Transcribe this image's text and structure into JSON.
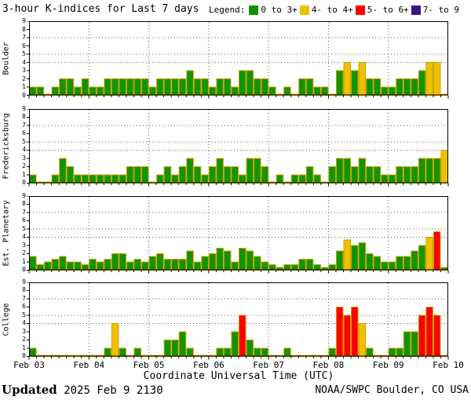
{
  "title": "3-hour K-indices for Last 7 days",
  "legend": {
    "label": "Legend:",
    "items": [
      {
        "label": "0 to 3+",
        "color": "#129400"
      },
      {
        "label": "4- to 4+",
        "color": "#f0c000"
      },
      {
        "label": "5- to 6+",
        "color": "#fb0000"
      },
      {
        "label": "7- to 9",
        "color": "#3d1486"
      }
    ]
  },
  "x_axis": {
    "labels": [
      "Feb 03",
      "Feb 04",
      "Feb 05",
      "Feb 06",
      "Feb 07",
      "Feb 08",
      "Feb 09",
      "Feb 10"
    ],
    "title": "Coordinate Universal Time (UTC)"
  },
  "y_axis": {
    "min": 0,
    "max": 9,
    "dotted_levels": [
      4,
      5,
      7
    ]
  },
  "footer": {
    "updated_label": "Updated",
    "updated_value": "2025 Feb  9 2130",
    "credit": "NOAA/SWPC Boulder, CO USA"
  },
  "chart_data": {
    "type": "bar",
    "title": "3-hour K-indices for Last 7 days",
    "bars_per_day": 8,
    "ylim": [
      0,
      9
    ],
    "grid": {
      "horizontal_dotted_at": [
        4,
        5,
        7
      ],
      "vertical_dotted_at_day_boundaries": true
    },
    "x_days": [
      "Feb 03",
      "Feb 04",
      "Feb 05",
      "Feb 06",
      "Feb 07",
      "Feb 08",
      "Feb 09"
    ],
    "series": [
      {
        "name": "Boulder",
        "values_by_day": [
          [
            1,
            1,
            0,
            1,
            2,
            2,
            1,
            2
          ],
          [
            1,
            1,
            2,
            2,
            2,
            2,
            2,
            2
          ],
          [
            1,
            2,
            2,
            2,
            2,
            3,
            2,
            2
          ],
          [
            1,
            2,
            2,
            1,
            3,
            3,
            2,
            2
          ],
          [
            1,
            0,
            1,
            0,
            2,
            2,
            1,
            1
          ],
          [
            0,
            3,
            4,
            3,
            4,
            2,
            2,
            1
          ],
          [
            1,
            2,
            2,
            2,
            3,
            4,
            4,
            0
          ]
        ]
      },
      {
        "name": "Fredericksburg",
        "values_by_day": [
          [
            1,
            0,
            0,
            1,
            3,
            2,
            1,
            1
          ],
          [
            1,
            1,
            1,
            1,
            1,
            2,
            2,
            2
          ],
          [
            0,
            1,
            2,
            1,
            2,
            3,
            2,
            1
          ],
          [
            2,
            3,
            2,
            2,
            1,
            3,
            3,
            2
          ],
          [
            0,
            1,
            0,
            1,
            1,
            2,
            1,
            0
          ],
          [
            2,
            3,
            3,
            2,
            3,
            2,
            2,
            1
          ],
          [
            1,
            2,
            2,
            2,
            3,
            3,
            3,
            4
          ]
        ]
      },
      {
        "name": "Est. Planetary",
        "values_by_day": [
          [
            1.67,
            0.67,
            1,
            1.33,
            1.67,
            1,
            1,
            0.67
          ],
          [
            1.33,
            1,
            1.33,
            2,
            2,
            1,
            1.33,
            1
          ],
          [
            1.67,
            2,
            1.33,
            1.33,
            1.33,
            2.33,
            1,
            1.67
          ],
          [
            2,
            2.67,
            2.33,
            1,
            2.67,
            2.33,
            1.67,
            1
          ],
          [
            0.67,
            0.33,
            0.67,
            0.67,
            1.33,
            1.33,
            0.67,
            0.33
          ],
          [
            0.67,
            2.33,
            3.67,
            3,
            3.33,
            2,
            1.67,
            1
          ],
          [
            1,
            1.67,
            1.67,
            2.33,
            3,
            4,
            4.67,
            0.33
          ]
        ]
      },
      {
        "name": "College",
        "values_by_day": [
          [
            1,
            0,
            0,
            0,
            0,
            0,
            0,
            0
          ],
          [
            0,
            0,
            1,
            4,
            1,
            0,
            1,
            0
          ],
          [
            0,
            0,
            2,
            2,
            3,
            1,
            0,
            0
          ],
          [
            0,
            1,
            1,
            3,
            5,
            2,
            1,
            1
          ],
          [
            0,
            0,
            1,
            0,
            0,
            0,
            0,
            0
          ],
          [
            1,
            6,
            5,
            6,
            4,
            1,
            0,
            0
          ],
          [
            1,
            1,
            3,
            3,
            5,
            6,
            5,
            0
          ]
        ]
      }
    ],
    "color_thresholds": [
      {
        "max": 3.4,
        "color": "#129400",
        "label": "0 to 3+"
      },
      {
        "max": 4.4,
        "color": "#f0c000",
        "label": "4- to 4+"
      },
      {
        "max": 6.4,
        "color": "#fb0000",
        "label": "5- to 6+"
      },
      {
        "max": 9.0,
        "color": "#3d1486",
        "label": "7- to 9"
      }
    ],
    "bar_outline_color": "#c9a000"
  }
}
